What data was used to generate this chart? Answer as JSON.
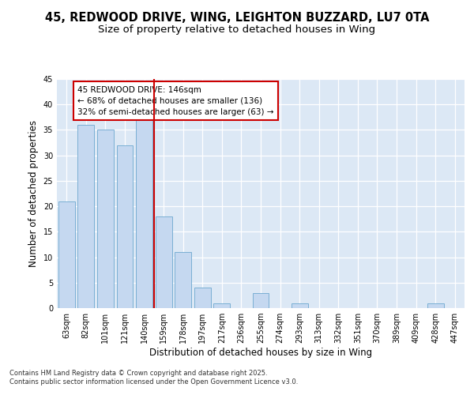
{
  "title_line1": "45, REDWOOD DRIVE, WING, LEIGHTON BUZZARD, LU7 0TA",
  "title_line2": "Size of property relative to detached houses in Wing",
  "xlabel": "Distribution of detached houses by size in Wing",
  "ylabel": "Number of detached properties",
  "categories": [
    "63sqm",
    "82sqm",
    "101sqm",
    "121sqm",
    "140sqm",
    "159sqm",
    "178sqm",
    "197sqm",
    "217sqm",
    "236sqm",
    "255sqm",
    "274sqm",
    "293sqm",
    "313sqm",
    "332sqm",
    "351sqm",
    "370sqm",
    "389sqm",
    "409sqm",
    "428sqm",
    "447sqm"
  ],
  "values": [
    21,
    36,
    35,
    32,
    37,
    18,
    11,
    4,
    1,
    0,
    3,
    0,
    1,
    0,
    0,
    0,
    0,
    0,
    0,
    1,
    0
  ],
  "bar_color": "#c5d8f0",
  "bar_edge_color": "#7aafd4",
  "background_color": "#dce8f5",
  "grid_color": "#ffffff",
  "vline_x": 4.5,
  "vline_color": "#cc0000",
  "annotation_text": "45 REDWOOD DRIVE: 146sqm\n← 68% of detached houses are smaller (136)\n32% of semi-detached houses are larger (63) →",
  "annotation_box_color": "#ffffff",
  "annotation_box_edge_color": "#cc0000",
  "ylim": [
    0,
    45
  ],
  "yticks": [
    0,
    5,
    10,
    15,
    20,
    25,
    30,
    35,
    40,
    45
  ],
  "footer_text": "Contains HM Land Registry data © Crown copyright and database right 2025.\nContains public sector information licensed under the Open Government Licence v3.0.",
  "title_fontsize": 10.5,
  "subtitle_fontsize": 9.5,
  "axis_label_fontsize": 8.5,
  "tick_fontsize": 7,
  "annotation_fontsize": 7.5,
  "footer_fontsize": 6
}
